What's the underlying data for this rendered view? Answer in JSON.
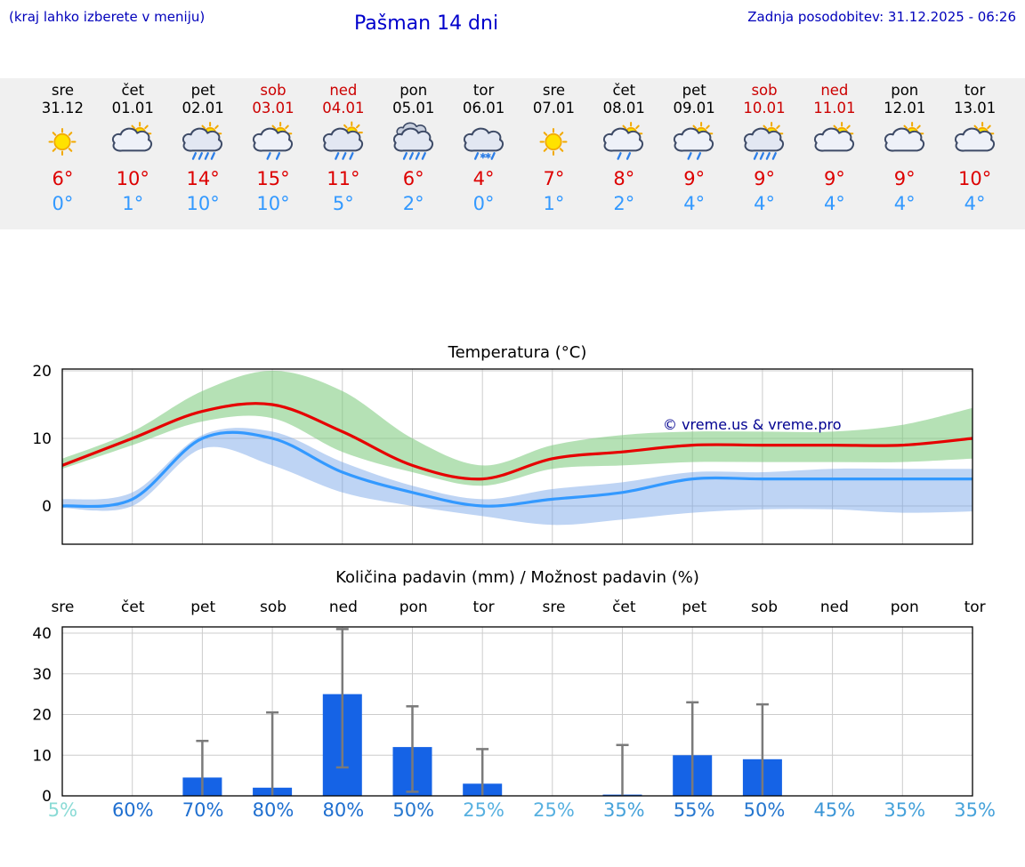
{
  "header": {
    "left_note": "(kraj lahko izberete v meniju)",
    "title": "Pašman 14 dni",
    "last_update": "Zadnja posodobitev: 31.12.2025 - 06:26"
  },
  "colors": {
    "accent_blue": "#0000cc",
    "high_red": "#dd0000",
    "low_blue": "#3399ff",
    "weekend_red": "#cc0000",
    "strip_bg": "#f0f0f0"
  },
  "forecast": {
    "days": [
      {
        "name": "sre",
        "date": "31.12",
        "weekend": false,
        "icon": "sunny",
        "high": "6°",
        "low": "0°"
      },
      {
        "name": "čet",
        "date": "01.01",
        "weekend": false,
        "icon": "partly-cloudy",
        "high": "10°",
        "low": "1°"
      },
      {
        "name": "pet",
        "date": "02.01",
        "weekend": false,
        "icon": "sun-heavy-rain",
        "high": "14°",
        "low": "10°"
      },
      {
        "name": "sob",
        "date": "03.01",
        "weekend": true,
        "icon": "sun-rain",
        "high": "15°",
        "low": "10°"
      },
      {
        "name": "ned",
        "date": "04.01",
        "weekend": true,
        "icon": "rain",
        "high": "11°",
        "low": "5°"
      },
      {
        "name": "pon",
        "date": "05.01",
        "weekend": false,
        "icon": "heavy-rain",
        "high": "6°",
        "low": "2°"
      },
      {
        "name": "tor",
        "date": "06.01",
        "weekend": false,
        "icon": "sleet",
        "high": "4°",
        "low": "0°"
      },
      {
        "name": "sre",
        "date": "07.01",
        "weekend": false,
        "icon": "sunny",
        "high": "7°",
        "low": "1°"
      },
      {
        "name": "čet",
        "date": "08.01",
        "weekend": false,
        "icon": "sun-rain",
        "high": "8°",
        "low": "2°"
      },
      {
        "name": "pet",
        "date": "09.01",
        "weekend": false,
        "icon": "sun-rain",
        "high": "9°",
        "low": "4°"
      },
      {
        "name": "sob",
        "date": "10.01",
        "weekend": true,
        "icon": "sun-heavy-rain",
        "high": "9°",
        "low": "4°"
      },
      {
        "name": "ned",
        "date": "11.01",
        "weekend": true,
        "icon": "partly-cloudy",
        "high": "9°",
        "low": "4°"
      },
      {
        "name": "pon",
        "date": "12.01",
        "weekend": false,
        "icon": "partly-cloudy",
        "high": "9°",
        "low": "4°"
      },
      {
        "name": "tor",
        "date": "13.01",
        "weekend": false,
        "icon": "partly-cloudy",
        "high": "10°",
        "low": "4°"
      }
    ]
  },
  "chart_data": [
    {
      "type": "line",
      "title": "Temperatura (°C)",
      "categories": [
        "sre",
        "čet",
        "pet",
        "sob",
        "ned",
        "pon",
        "tor",
        "sre",
        "čet",
        "pet",
        "sob",
        "ned",
        "pon",
        "tor"
      ],
      "yticks": [
        0,
        10,
        20
      ],
      "ylim": [
        -5.7,
        20.6
      ],
      "grid": true,
      "legend": "none",
      "watermark": "© vreme.us & vreme.pro",
      "series": [
        {
          "name": "max-temp",
          "color": "#e60000",
          "values": [
            6,
            10,
            14,
            15,
            11,
            6,
            4,
            7,
            8,
            9,
            9,
            9,
            9,
            10
          ]
        },
        {
          "name": "min-temp",
          "color": "#3399ff",
          "values": [
            0,
            1,
            10,
            10,
            5,
            2,
            0,
            1,
            2,
            4,
            4,
            4,
            4,
            4
          ]
        }
      ],
      "bands": [
        {
          "name": "max-temp-range",
          "color": "rgba(120,200,120,0.55)",
          "upper": [
            7,
            11,
            17,
            20,
            17,
            10,
            6,
            9,
            10.5,
            11,
            11,
            11,
            12,
            14.5
          ],
          "lower": [
            5.5,
            9,
            12.5,
            13,
            8,
            5,
            3,
            5.5,
            6,
            6.5,
            6.5,
            6.5,
            6.5,
            7
          ]
        },
        {
          "name": "min-temp-range",
          "color": "rgba(110,160,230,0.45)",
          "upper": [
            1,
            2,
            10.5,
            11,
            6.5,
            3,
            1,
            2.5,
            3.5,
            5,
            5,
            5.5,
            5.5,
            5.5
          ],
          "lower": [
            -0.3,
            0,
            8.5,
            6,
            2,
            0,
            -1.5,
            -2.8,
            -2,
            -1,
            -0.5,
            -0.5,
            -1,
            -0.8
          ]
        }
      ]
    },
    {
      "type": "bar",
      "title": "Količina padavin (mm) / Možnost padavin (%)",
      "categories": [
        "sre",
        "čet",
        "pet",
        "sob",
        "ned",
        "pon",
        "tor",
        "sre",
        "čet",
        "pet",
        "sob",
        "ned",
        "pon",
        "tor"
      ],
      "values": [
        0,
        0,
        4.5,
        2,
        25,
        12,
        3,
        0,
        0.3,
        10,
        9,
        0,
        0,
        0
      ],
      "bar_color": "#1563e6",
      "whiskers": [
        null,
        null,
        {
          "low": 0,
          "high": 13.5
        },
        {
          "low": 0,
          "high": 20.5
        },
        {
          "low": 7,
          "high": 41
        },
        {
          "low": 1,
          "high": 22
        },
        {
          "low": 0,
          "high": 11.5
        },
        null,
        {
          "low": 0,
          "high": 12.5
        },
        {
          "low": 0,
          "high": 23
        },
        {
          "low": 0,
          "high": 22.5
        },
        null,
        null,
        null
      ],
      "yticks": [
        0,
        10,
        20,
        30,
        40
      ],
      "ylim": [
        0,
        41.5
      ],
      "grid": true,
      "probabilities": [
        {
          "label": "5%",
          "color": "#8adbd6"
        },
        {
          "label": "60%",
          "color": "#1f6fd0"
        },
        {
          "label": "70%",
          "color": "#1f6fd0"
        },
        {
          "label": "80%",
          "color": "#1f6fd0"
        },
        {
          "label": "80%",
          "color": "#1f6fd0"
        },
        {
          "label": "50%",
          "color": "#2677cf"
        },
        {
          "label": "25%",
          "color": "#57b0e0"
        },
        {
          "label": "25%",
          "color": "#57b0e0"
        },
        {
          "label": "35%",
          "color": "#46a2da"
        },
        {
          "label": "55%",
          "color": "#2677cf"
        },
        {
          "label": "50%",
          "color": "#2677cf"
        },
        {
          "label": "45%",
          "color": "#3b95d6"
        },
        {
          "label": "35%",
          "color": "#46a2da"
        },
        {
          "label": "35%",
          "color": "#46a2da"
        }
      ]
    }
  ]
}
